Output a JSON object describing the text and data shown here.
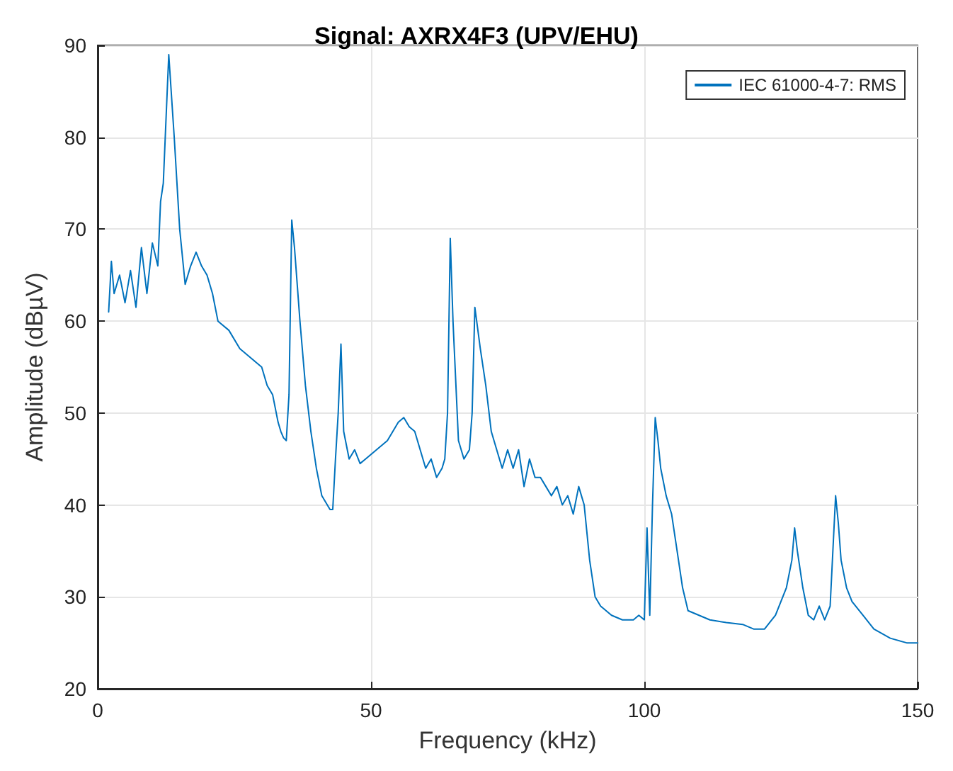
{
  "chart_data": {
    "type": "line",
    "title": "Signal: AXRX4F3 (UPV/EHU)",
    "xlabel": "Frequency (kHz)",
    "ylabel": "Amplitude (dBµV)",
    "xlim": [
      0,
      150
    ],
    "xticks": [
      0,
      50,
      100,
      150
    ],
    "ylim": [
      20,
      90
    ],
    "yticks": [
      20,
      30,
      40,
      50,
      60,
      70,
      80,
      90
    ],
    "grid": true,
    "legend": "top right",
    "marker": "none",
    "line_style": "solid",
    "series": [
      {
        "name": "IEC 61000-4-7: RMS",
        "color": "#0072bd",
        "x": [
          2,
          2.5,
          3,
          4,
          5,
          6,
          7,
          8,
          9,
          10,
          11,
          11.5,
          12,
          13,
          14,
          15,
          16,
          17,
          18,
          19,
          20,
          21,
          22,
          24,
          26,
          28,
          30,
          31,
          32,
          33,
          33.5,
          34,
          34.5,
          35,
          35.5,
          36,
          37,
          38,
          39,
          40,
          41,
          42,
          42.5,
          43,
          43.5,
          44,
          44.5,
          45,
          46,
          47,
          48,
          49,
          50,
          51,
          52,
          53,
          54,
          55,
          56,
          57,
          58,
          59,
          60,
          61,
          62,
          63,
          63.5,
          64,
          64.5,
          65,
          66,
          67,
          68,
          68.5,
          69,
          70,
          71,
          72,
          73,
          74,
          75,
          76,
          77,
          78,
          79,
          80,
          81,
          82,
          83,
          84,
          85,
          86,
          87,
          88,
          88.5,
          89,
          90,
          91,
          92,
          94,
          96,
          98,
          99,
          100,
          100.5,
          101,
          101.5,
          102,
          102.5,
          103,
          104,
          105,
          106,
          107,
          108,
          110,
          112,
          115,
          118,
          120,
          122,
          124,
          126,
          127,
          127.5,
          128,
          129,
          130,
          131,
          132,
          133,
          134,
          135,
          135.5,
          136,
          137,
          138,
          140,
          142,
          145,
          148,
          150
        ],
        "values": [
          61,
          66.5,
          63,
          65,
          62,
          65.5,
          61.5,
          68,
          63,
          68.5,
          66,
          73,
          75,
          89,
          80,
          70,
          64,
          66,
          67.5,
          66,
          65,
          63,
          60,
          59,
          57,
          56,
          55,
          53,
          52,
          49,
          48,
          47.3,
          47,
          52,
          71,
          68,
          60,
          53,
          48,
          44,
          41,
          40,
          39.5,
          39.5,
          45,
          50,
          57.5,
          48,
          45,
          46,
          44.5,
          45,
          45.5,
          46,
          46.5,
          47,
          48,
          49,
          49.5,
          48.5,
          48,
          46,
          44,
          45,
          43,
          44,
          45,
          50,
          69,
          60,
          47,
          45,
          46,
          50,
          61.5,
          57,
          53,
          48,
          46,
          44,
          46,
          44,
          46,
          42,
          45,
          43,
          43,
          42,
          41,
          42,
          40,
          41,
          39,
          42,
          41,
          40,
          34,
          30,
          29,
          28,
          27.5,
          27.5,
          28,
          27.5,
          37.5,
          28,
          40,
          49.5,
          47,
          44,
          41,
          39,
          35,
          31,
          28.5,
          28,
          27.5,
          27.2,
          27,
          26.5,
          26.5,
          28,
          31,
          34,
          37.5,
          35,
          31,
          28,
          27.5,
          29,
          27.5,
          29,
          41,
          38,
          34,
          31,
          29.5,
          28,
          26.5,
          25.5,
          25,
          25
        ]
      }
    ]
  }
}
